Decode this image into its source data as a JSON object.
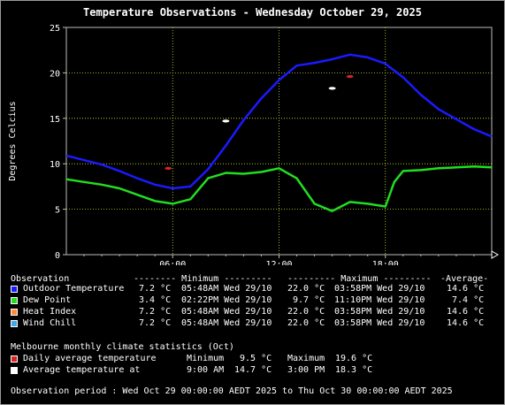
{
  "chart_data": {
    "type": "line",
    "title": "Temperature Observations - Wednesday October 29, 2025",
    "ylabel": "Degrees Celcius",
    "xlabel": "",
    "ylim": [
      0,
      25
    ],
    "xlim": [
      0,
      24
    ],
    "x_ticks": [
      "06:00",
      "12:00",
      "18:00"
    ],
    "y_ticks": [
      "0",
      "5",
      "10",
      "15",
      "20",
      "25"
    ],
    "grid": true,
    "series": [
      {
        "name": "Outdoor Temperature",
        "color": "#1a1aff",
        "points": [
          [
            0,
            10.9
          ],
          [
            1,
            10.4
          ],
          [
            2,
            9.9
          ],
          [
            3,
            9.2
          ],
          [
            4,
            8.4
          ],
          [
            5,
            7.7
          ],
          [
            6,
            7.3
          ],
          [
            7,
            7.5
          ],
          [
            8,
            9.4
          ],
          [
            9,
            12.0
          ],
          [
            10,
            14.8
          ],
          [
            11,
            17.2
          ],
          [
            12,
            19.2
          ],
          [
            13,
            20.8
          ],
          [
            14,
            21.1
          ],
          [
            15,
            21.5
          ],
          [
            16,
            22.0
          ],
          [
            17,
            21.7
          ],
          [
            18,
            21.0
          ],
          [
            19,
            19.5
          ],
          [
            20,
            17.6
          ],
          [
            21,
            16.0
          ],
          [
            22,
            14.9
          ],
          [
            23,
            13.8
          ],
          [
            24,
            13.0
          ]
        ]
      },
      {
        "name": "Dew Point",
        "color": "#22dd22",
        "points": [
          [
            0,
            8.3
          ],
          [
            1,
            8.0
          ],
          [
            2,
            7.7
          ],
          [
            3,
            7.3
          ],
          [
            4,
            6.6
          ],
          [
            5,
            5.9
          ],
          [
            6,
            5.6
          ],
          [
            7,
            6.1
          ],
          [
            8,
            8.4
          ],
          [
            9,
            9.0
          ],
          [
            10,
            8.9
          ],
          [
            11,
            9.1
          ],
          [
            12,
            9.5
          ],
          [
            13,
            8.4
          ],
          [
            14,
            5.6
          ],
          [
            15,
            4.8
          ],
          [
            16,
            5.8
          ],
          [
            17,
            5.6
          ],
          [
            18,
            5.3
          ],
          [
            18.5,
            8.0
          ],
          [
            19,
            9.2
          ],
          [
            20,
            9.3
          ],
          [
            21,
            9.5
          ],
          [
            22,
            9.6
          ],
          [
            23,
            9.7
          ],
          [
            24,
            9.6
          ]
        ]
      }
    ],
    "markers": [
      {
        "name": "Daily average temperature minimum",
        "color": "#dd2222",
        "x": 5.75,
        "y": 9.5
      },
      {
        "name": "Daily average temperature maximum",
        "color": "#dd2222",
        "x": 16.0,
        "y": 19.6
      },
      {
        "name": "Average temperature at minimum",
        "color": "#ffffff",
        "x": 9.0,
        "y": 14.7
      },
      {
        "name": "Average temperature at maximum",
        "color": "#ffffff",
        "x": 15.0,
        "y": 18.3
      }
    ]
  },
  "colors": {
    "outdoor": "#1a1aff",
    "dew": "#22dd22",
    "heat": "#ff8c3a",
    "chill": "#40a8e8",
    "daily_avg": "#dd2222",
    "avg_at": "#ffffff",
    "grid": "#c8e632"
  },
  "legend": {
    "header": {
      "observation": "Observation",
      "minimum": "-------- Minimum ---------",
      "maximum": "--------- Maximum ---------",
      "average": "-Average-"
    },
    "rows": [
      {
        "label": "Outdoor Temperature",
        "min_val": "7.2 °C",
        "min_time": "05:48AM Wed 29/10",
        "max_val": "22.0 °C",
        "max_time": "03:58PM Wed 29/10",
        "avg": "14.6 °C",
        "icon": "blue-square"
      },
      {
        "label": "Dew Point",
        "min_val": "3.4 °C",
        "min_time": "02:22PM Wed 29/10",
        "max_val": "9.7 °C",
        "max_time": "11:10PM Wed 29/10",
        "avg": "7.4 °C",
        "icon": "green-square"
      },
      {
        "label": "Heat Index",
        "min_val": "7.2 °C",
        "min_time": "05:48AM Wed 29/10",
        "max_val": "22.0 °C",
        "max_time": "03:58PM Wed 29/10",
        "avg": "14.6 °C",
        "icon": "orange-square"
      },
      {
        "label": "Wind Chill",
        "min_val": "7.2 °C",
        "min_time": "05:48AM Wed 29/10",
        "max_val": "22.0 °C",
        "max_time": "03:58PM Wed 29/10",
        "avg": "14.6 °C",
        "icon": "lightblue-square"
      }
    ]
  },
  "climate": {
    "heading": "Melbourne monthly climate statistics (Oct)",
    "row1": {
      "label": "Daily average temperature",
      "min_label": "Minimum",
      "min_val": "9.5 °C",
      "max_label": "Maximum",
      "max_val": "19.6 °C"
    },
    "row2": {
      "label": "Average temperature at",
      "min_time": "9:00 AM",
      "min_val": "14.7 °C",
      "max_time": "3:00 PM",
      "max_val": "18.3 °C"
    }
  },
  "observation_period": "Observation period : Wed Oct 29 00:00:00 AEDT 2025 to Thu Oct 30 00:00:00 AEDT 2025"
}
